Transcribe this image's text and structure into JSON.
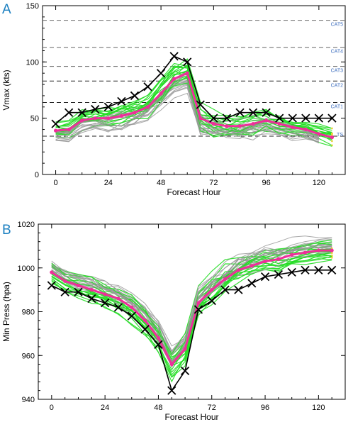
{
  "colors": {
    "ensemble_gray": "#999999",
    "ensemble_green": "#22dd22",
    "ensemble_mean": "#ee2e9a",
    "observed": "#000000",
    "category_label": "#3f6fbf",
    "panel_letter": "#1a7fc0",
    "point_yellow": "#e7d23a"
  },
  "chart_data": [
    {
      "panel": "A",
      "type": "line",
      "xlabel": "Forecast Hour",
      "ylabel": "Vmax (kts)",
      "xlim": [
        -6,
        132
      ],
      "ylim": [
        0,
        150
      ],
      "xticks": [
        0,
        24,
        48,
        72,
        96,
        120
      ],
      "yticks": [
        0,
        50,
        100,
        150
      ],
      "grid": false,
      "thresholds": [
        {
          "label": "TS",
          "value": 34
        },
        {
          "label": "CAT1",
          "value": 64
        },
        {
          "label": "CAT2",
          "value": 83
        },
        {
          "label": "CAT3",
          "value": 96
        },
        {
          "label": "CAT4",
          "value": 113
        },
        {
          "label": "CAT5",
          "value": 137
        }
      ],
      "x": [
        0,
        6,
        12,
        18,
        24,
        30,
        36,
        42,
        48,
        54,
        60,
        66,
        72,
        78,
        84,
        90,
        96,
        102,
        108,
        114,
        120,
        126
      ],
      "series": [
        {
          "role": "observed",
          "marker": "x",
          "values": [
            45,
            55,
            55,
            58,
            60,
            65,
            70,
            78,
            90,
            105,
            100,
            62,
            50,
            50,
            55,
            55,
            55,
            50,
            50,
            50,
            50,
            50
          ]
        },
        {
          "role": "ensemble_mean",
          "marker": "dot",
          "values": [
            39,
            40,
            48,
            50,
            50,
            52,
            55,
            60,
            72,
            85,
            90,
            50,
            45,
            43,
            43,
            45,
            48,
            45,
            42,
            40,
            36,
            33
          ]
        }
      ]
    },
    {
      "panel": "B",
      "type": "line",
      "xlabel": "Forecast Hour",
      "ylabel": "Min Press (hpa)",
      "xlim": [
        -6,
        132
      ],
      "ylim": [
        940,
        1020
      ],
      "xticks": [
        0,
        24,
        48,
        72,
        96,
        120
      ],
      "yticks": [
        940,
        960,
        980,
        1000,
        1020
      ],
      "grid": false,
      "x": [
        0,
        6,
        12,
        18,
        24,
        30,
        36,
        42,
        48,
        54,
        60,
        66,
        72,
        78,
        84,
        90,
        96,
        102,
        108,
        114,
        120,
        126
      ],
      "series": [
        {
          "role": "observed",
          "marker": "x",
          "values": [
            992,
            989,
            989,
            986,
            984,
            982,
            978,
            972,
            965,
            944,
            953,
            981,
            985,
            990,
            990,
            993,
            996,
            997,
            998,
            999,
            999,
            999
          ]
        },
        {
          "role": "ensemble_mean",
          "marker": "dot",
          "values": [
            998,
            994,
            992,
            990,
            988,
            986,
            982,
            976,
            968,
            956,
            963,
            984,
            990,
            995,
            999,
            1001,
            1003,
            1004,
            1006,
            1007,
            1008,
            1008
          ]
        }
      ]
    }
  ]
}
